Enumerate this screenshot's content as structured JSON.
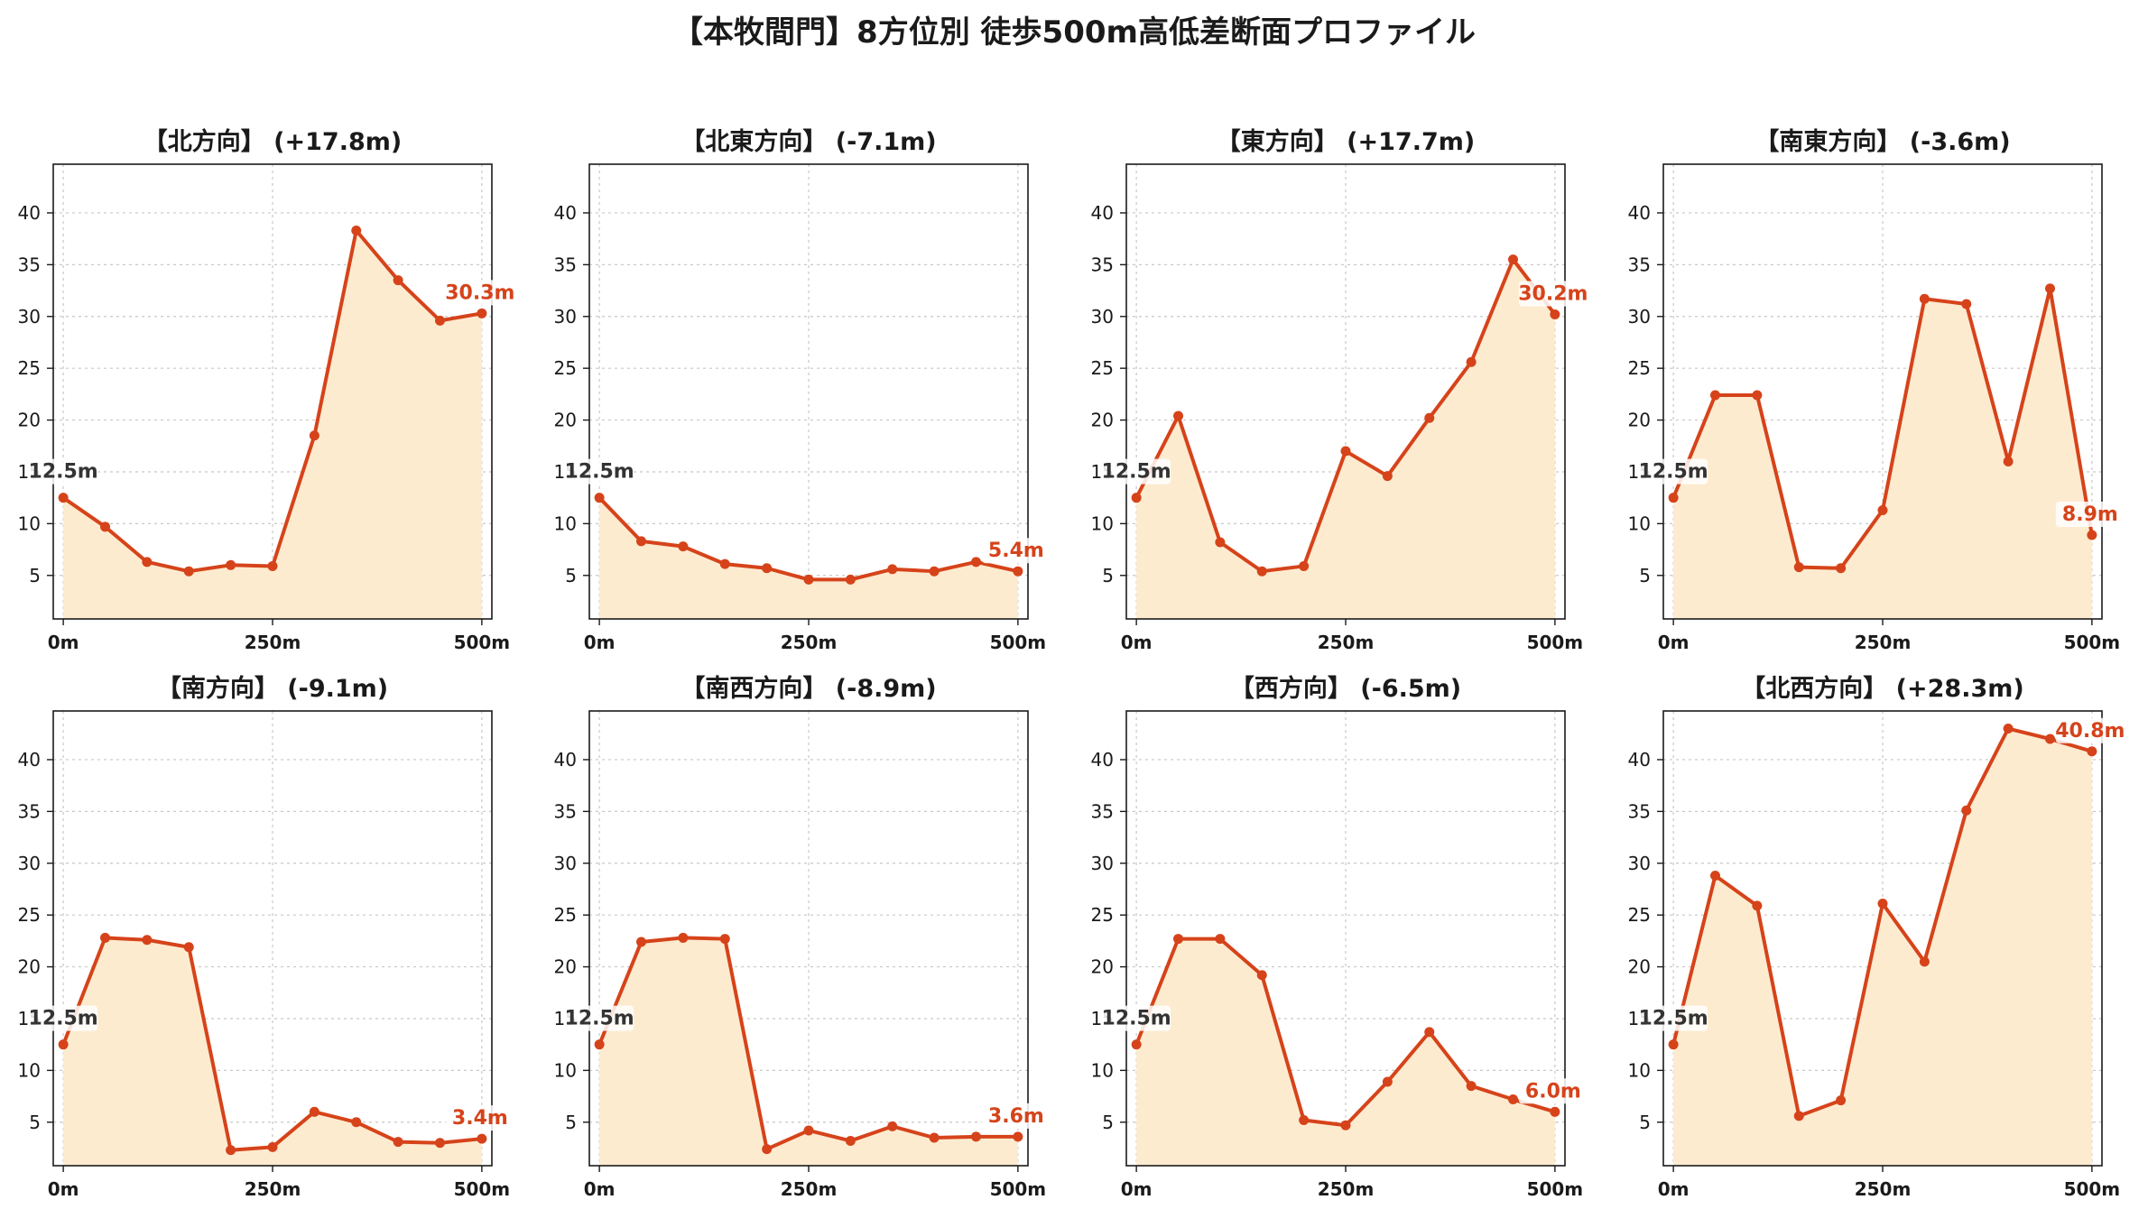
{
  "title": "【本牧間門】8方位別 徒歩500m高低差断面プロファイル",
  "colors": {
    "line": "#d6431a",
    "fill": "#fdebd0",
    "grid": "#c8c8c8",
    "start_label": "#333333",
    "end_label": "#d6431a"
  },
  "chart_data": [
    {
      "type": "area",
      "title": "【北方向】 (+17.8m)",
      "x": [
        0,
        50,
        100,
        150,
        200,
        250,
        300,
        350,
        400,
        450,
        500
      ],
      "y": [
        12.5,
        9.7,
        6.3,
        5.4,
        6.0,
        5.9,
        18.5,
        38.3,
        33.5,
        29.6,
        30.3
      ],
      "xticks": [
        "0m",
        "250m",
        "500m"
      ],
      "yticks": [
        5,
        10,
        15,
        20,
        25,
        30,
        35,
        40
      ],
      "ylim": [
        0.8,
        44.7
      ],
      "xlim": [
        -12,
        512
      ],
      "grid": true,
      "start_label": "12.5m",
      "end_label": "30.3m"
    },
    {
      "type": "area",
      "title": "【北東方向】 (-7.1m)",
      "x": [
        0,
        50,
        100,
        150,
        200,
        250,
        300,
        350,
        400,
        450,
        500
      ],
      "y": [
        12.5,
        8.3,
        7.8,
        6.1,
        5.7,
        4.6,
        4.6,
        5.6,
        5.4,
        6.3,
        5.4
      ],
      "xticks": [
        "0m",
        "250m",
        "500m"
      ],
      "yticks": [
        5,
        10,
        15,
        20,
        25,
        30,
        35,
        40
      ],
      "ylim": [
        0.8,
        44.7
      ],
      "xlim": [
        -12,
        512
      ],
      "grid": true,
      "start_label": "12.5m",
      "end_label": "5.4m"
    },
    {
      "type": "area",
      "title": "【東方向】 (+17.7m)",
      "x": [
        0,
        50,
        100,
        150,
        200,
        250,
        300,
        350,
        400,
        450,
        500
      ],
      "y": [
        12.5,
        20.4,
        8.2,
        5.4,
        5.9,
        17.0,
        14.6,
        20.2,
        25.6,
        35.5,
        30.2
      ],
      "xticks": [
        "0m",
        "250m",
        "500m"
      ],
      "yticks": [
        5,
        10,
        15,
        20,
        25,
        30,
        35,
        40
      ],
      "ylim": [
        0.8,
        44.7
      ],
      "xlim": [
        -12,
        512
      ],
      "grid": true,
      "start_label": "12.5m",
      "end_label": "30.2m"
    },
    {
      "type": "area",
      "title": "【南東方向】 (-3.6m)",
      "x": [
        0,
        50,
        100,
        150,
        200,
        250,
        300,
        350,
        400,
        450,
        500
      ],
      "y": [
        12.5,
        22.4,
        22.4,
        5.8,
        5.7,
        11.3,
        31.7,
        31.2,
        16.0,
        32.7,
        8.9
      ],
      "xticks": [
        "0m",
        "250m",
        "500m"
      ],
      "yticks": [
        5,
        10,
        15,
        20,
        25,
        30,
        35,
        40
      ],
      "ylim": [
        0.8,
        44.7
      ],
      "xlim": [
        -12,
        512
      ],
      "grid": true,
      "start_label": "12.5m",
      "end_label": "8.9m"
    },
    {
      "type": "area",
      "title": "【南方向】 (-9.1m)",
      "x": [
        0,
        50,
        100,
        150,
        200,
        250,
        300,
        350,
        400,
        450,
        500
      ],
      "y": [
        12.5,
        22.8,
        22.6,
        21.9,
        2.3,
        2.6,
        6.0,
        5.0,
        3.1,
        3.0,
        3.4
      ],
      "xticks": [
        "0m",
        "250m",
        "500m"
      ],
      "yticks": [
        5,
        10,
        15,
        20,
        25,
        30,
        35,
        40
      ],
      "ylim": [
        0.8,
        44.7
      ],
      "xlim": [
        -12,
        512
      ],
      "grid": true,
      "start_label": "12.5m",
      "end_label": "3.4m"
    },
    {
      "type": "area",
      "title": "【南西方向】 (-8.9m)",
      "x": [
        0,
        50,
        100,
        150,
        200,
        250,
        300,
        350,
        400,
        450,
        500
      ],
      "y": [
        12.5,
        22.4,
        22.8,
        22.7,
        2.4,
        4.2,
        3.2,
        4.6,
        3.5,
        3.6,
        3.6
      ],
      "xticks": [
        "0m",
        "250m",
        "500m"
      ],
      "yticks": [
        5,
        10,
        15,
        20,
        25,
        30,
        35,
        40
      ],
      "ylim": [
        0.8,
        44.7
      ],
      "xlim": [
        -12,
        512
      ],
      "grid": true,
      "start_label": "12.5m",
      "end_label": "3.6m"
    },
    {
      "type": "area",
      "title": "【西方向】 (-6.5m)",
      "x": [
        0,
        50,
        100,
        150,
        200,
        250,
        300,
        350,
        400,
        450,
        500
      ],
      "y": [
        12.5,
        22.7,
        22.7,
        19.2,
        5.2,
        4.7,
        8.9,
        13.7,
        8.5,
        7.2,
        6.0
      ],
      "xticks": [
        "0m",
        "250m",
        "500m"
      ],
      "yticks": [
        5,
        10,
        15,
        20,
        25,
        30,
        35,
        40
      ],
      "ylim": [
        0.8,
        44.7
      ],
      "xlim": [
        -12,
        512
      ],
      "grid": true,
      "start_label": "12.5m",
      "end_label": "6.0m"
    },
    {
      "type": "area",
      "title": "【北西方向】 (+28.3m)",
      "x": [
        0,
        50,
        100,
        150,
        200,
        250,
        300,
        350,
        400,
        450,
        500
      ],
      "y": [
        12.5,
        28.8,
        25.9,
        5.6,
        7.1,
        26.1,
        20.5,
        35.1,
        43.0,
        42.0,
        40.8
      ],
      "xticks": [
        "0m",
        "250m",
        "500m"
      ],
      "yticks": [
        5,
        10,
        15,
        20,
        25,
        30,
        35,
        40
      ],
      "ylim": [
        0.8,
        44.7
      ],
      "xlim": [
        -12,
        512
      ],
      "grid": true,
      "start_label": "12.5m",
      "end_label": "40.8m"
    }
  ]
}
